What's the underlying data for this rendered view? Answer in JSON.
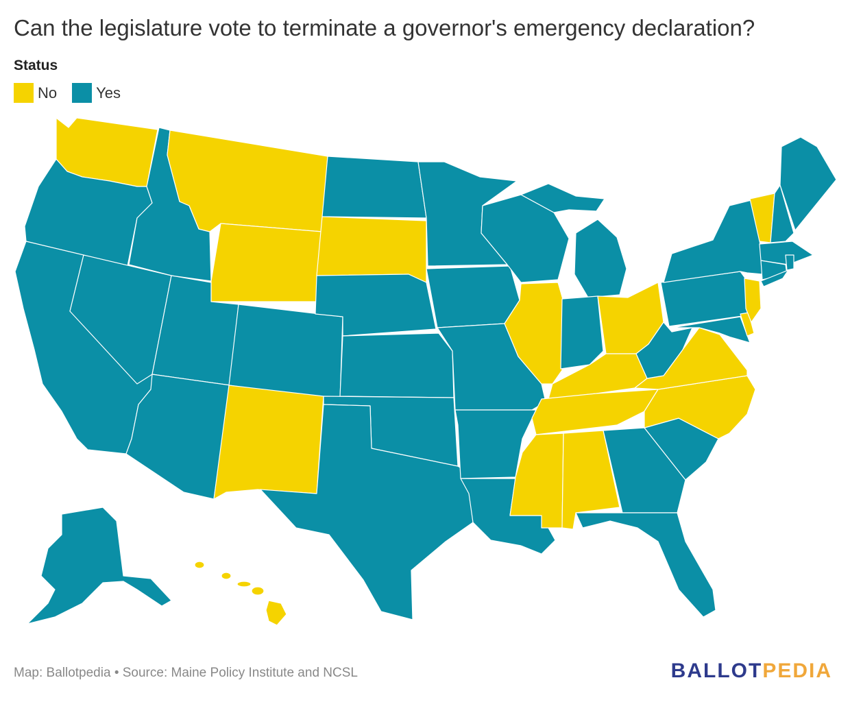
{
  "title": "Can the legislature vote to terminate a governor's emergency declaration?",
  "legend": {
    "title": "Status",
    "items": [
      {
        "label": "No",
        "color": "#f5d300"
      },
      {
        "label": "Yes",
        "color": "#0b8fa6"
      }
    ]
  },
  "colors": {
    "no": "#f5d300",
    "yes": "#0b8fa6",
    "border": "#ffffff"
  },
  "states_no": [
    "Washington",
    "Montana",
    "Wyoming",
    "South Dakota",
    "New Mexico",
    "Illinois",
    "Ohio",
    "Kentucky",
    "Tennessee",
    "Mississippi",
    "Alabama",
    "Virginia",
    "North Carolina",
    "Vermont",
    "New Jersey",
    "Delaware",
    "Hawaii"
  ],
  "states_yes": [
    "Oregon",
    "California",
    "Idaho",
    "Nevada",
    "Utah",
    "Arizona",
    "Colorado",
    "North Dakota",
    "Nebraska",
    "Kansas",
    "Oklahoma",
    "Texas",
    "Minnesota",
    "Iowa",
    "Missouri",
    "Arkansas",
    "Louisiana",
    "Wisconsin",
    "Michigan",
    "Indiana",
    "West Virginia",
    "Pennsylvania",
    "New York",
    "Maryland",
    "Georgia",
    "South Carolina",
    "Florida",
    "Maine",
    "New Hampshire",
    "Massachusetts",
    "Connecticut",
    "Rhode Island",
    "Alaska"
  ],
  "footer": "Map: Ballotpedia • Source: Maine Policy Institute and NCSL",
  "logo": {
    "part1": "BALLOT",
    "part2": "PEDIA"
  }
}
